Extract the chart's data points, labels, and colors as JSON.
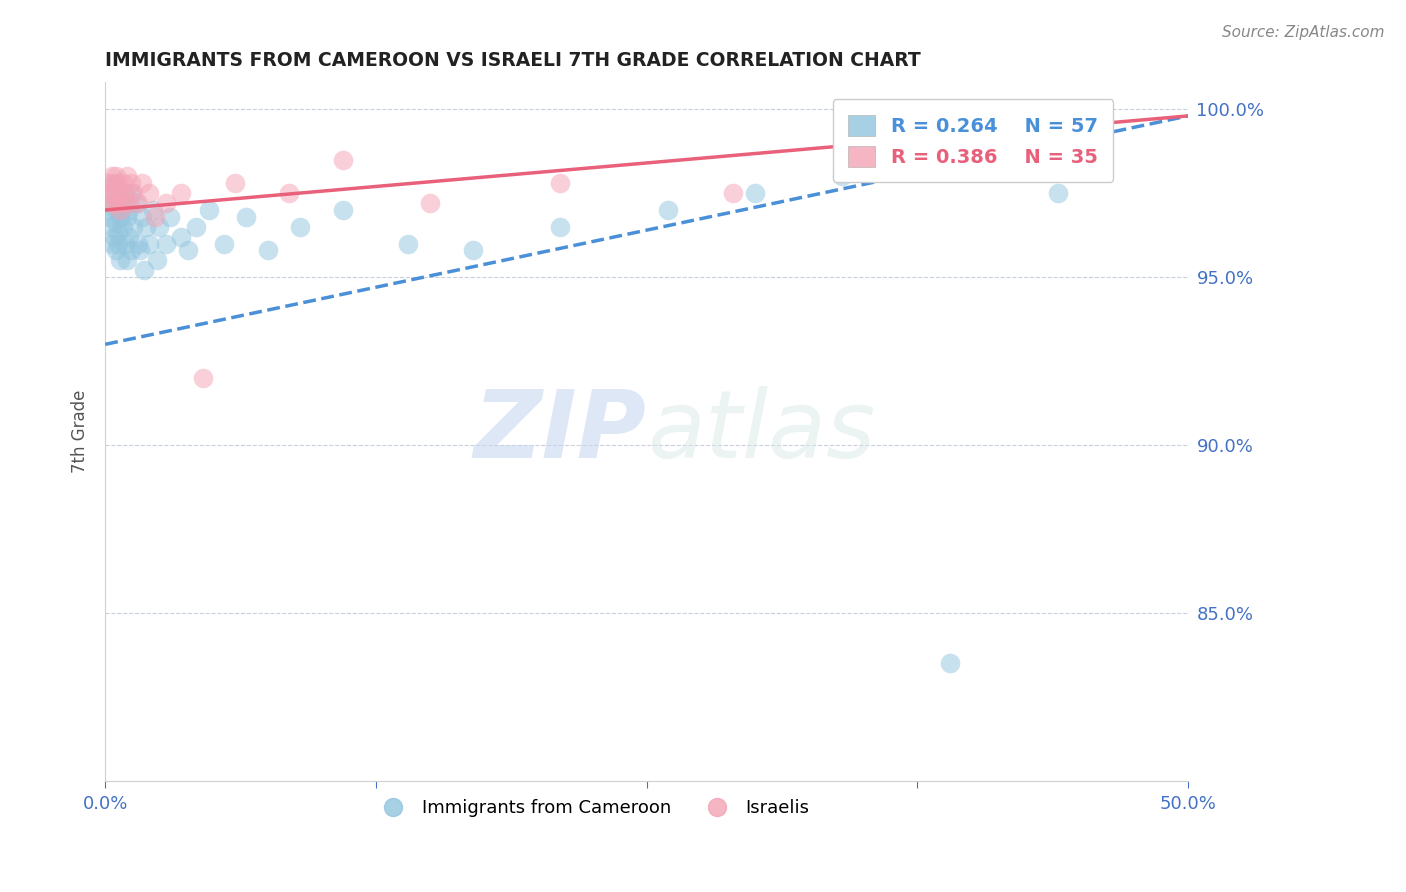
{
  "title": "IMMIGRANTS FROM CAMEROON VS ISRAELI 7TH GRADE CORRELATION CHART",
  "source_text": "Source: ZipAtlas.com",
  "ylabel": "7th Grade",
  "xlim": [
    0.0,
    0.5
  ],
  "ylim": [
    0.8,
    1.008
  ],
  "yticks": [
    0.85,
    0.9,
    0.95,
    1.0
  ],
  "ytick_labels": [
    "85.0%",
    "90.0%",
    "95.0%",
    "100.0%"
  ],
  "xticks": [
    0.0,
    0.125,
    0.25,
    0.375,
    0.5
  ],
  "xtick_labels": [
    "0.0%",
    "",
    "",
    "",
    "50.0%"
  ],
  "legend_blue_label": "R = 0.264    N = 57",
  "legend_pink_label": "R = 0.386    N = 35",
  "legend_label1": "Immigrants from Cameroon",
  "legend_label2": "Israelis",
  "blue_color": "#92c5de",
  "pink_color": "#f4a3b5",
  "blue_line_color": "#4a90d9",
  "pink_line_color": "#e8607a",
  "watermark_zip": "ZIP",
  "watermark_atlas": "atlas",
  "blue_scatter_x": [
    0.001,
    0.002,
    0.002,
    0.003,
    0.003,
    0.003,
    0.004,
    0.004,
    0.005,
    0.005,
    0.005,
    0.006,
    0.006,
    0.006,
    0.007,
    0.007,
    0.007,
    0.008,
    0.008,
    0.009,
    0.009,
    0.01,
    0.01,
    0.011,
    0.011,
    0.012,
    0.012,
    0.013,
    0.014,
    0.015,
    0.016,
    0.017,
    0.018,
    0.019,
    0.02,
    0.022,
    0.024,
    0.025,
    0.028,
    0.03,
    0.035,
    0.038,
    0.042,
    0.048,
    0.055,
    0.065,
    0.075,
    0.09,
    0.11,
    0.14,
    0.17,
    0.21,
    0.26,
    0.3,
    0.34,
    0.39,
    0.44
  ],
  "blue_scatter_y": [
    0.97,
    0.975,
    0.968,
    0.972,
    0.965,
    0.96,
    0.978,
    0.962,
    0.97,
    0.966,
    0.958,
    0.975,
    0.963,
    0.96,
    0.972,
    0.968,
    0.955,
    0.97,
    0.965,
    0.975,
    0.96,
    0.968,
    0.955,
    0.97,
    0.962,
    0.975,
    0.958,
    0.965,
    0.972,
    0.96,
    0.958,
    0.968,
    0.952,
    0.965,
    0.96,
    0.97,
    0.955,
    0.965,
    0.96,
    0.968,
    0.962,
    0.958,
    0.965,
    0.97,
    0.96,
    0.968,
    0.958,
    0.965,
    0.97,
    0.96,
    0.958,
    0.965,
    0.97,
    0.975,
    0.98,
    0.835,
    0.975
  ],
  "pink_scatter_x": [
    0.001,
    0.002,
    0.002,
    0.003,
    0.003,
    0.004,
    0.004,
    0.005,
    0.005,
    0.006,
    0.006,
    0.007,
    0.007,
    0.008,
    0.008,
    0.009,
    0.01,
    0.011,
    0.012,
    0.013,
    0.015,
    0.017,
    0.02,
    0.023,
    0.028,
    0.035,
    0.045,
    0.06,
    0.085,
    0.11,
    0.15,
    0.21,
    0.29,
    0.38,
    0.46
  ],
  "pink_scatter_y": [
    0.978,
    0.975,
    0.972,
    0.98,
    0.975,
    0.972,
    0.978,
    0.975,
    0.98,
    0.972,
    0.978,
    0.975,
    0.97,
    0.978,
    0.972,
    0.975,
    0.98,
    0.972,
    0.978,
    0.975,
    0.972,
    0.978,
    0.975,
    0.968,
    0.972,
    0.975,
    0.92,
    0.978,
    0.975,
    0.985,
    0.972,
    0.978,
    0.975,
    0.988,
    0.995
  ],
  "blue_line_x": [
    0.0,
    0.5
  ],
  "blue_line_y": [
    0.93,
    0.998
  ],
  "pink_line_x": [
    0.0,
    0.5
  ],
  "pink_line_y": [
    0.97,
    0.998
  ]
}
